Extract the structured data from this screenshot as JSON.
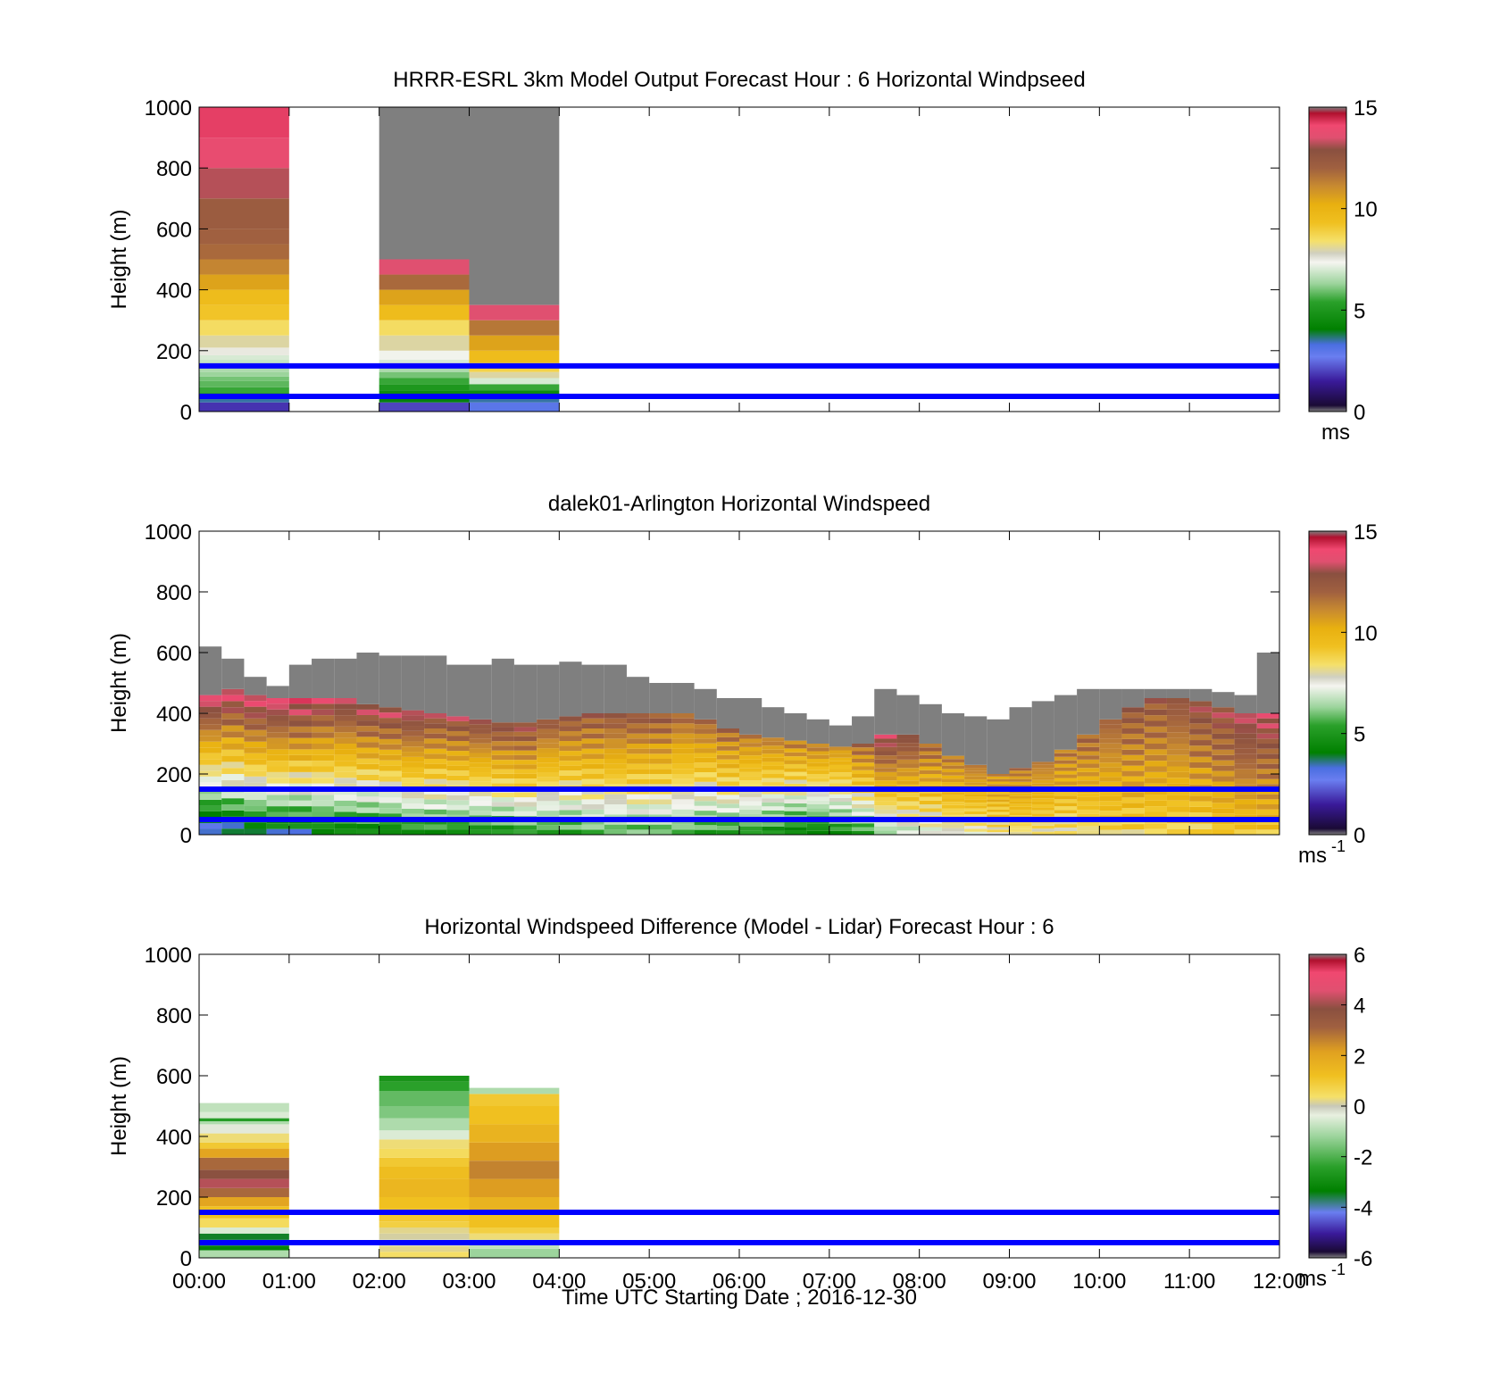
{
  "figure": {
    "xlabel": "Time UTC  Starting Date ; 2016-12-30",
    "x_ticks": [
      "00:00",
      "01:00",
      "02:00",
      "03:00",
      "04:00",
      "05:00",
      "06:00",
      "07:00",
      "08:00",
      "09:00",
      "10:00",
      "11:00",
      "12:00"
    ],
    "reference_line_color": "#0000ff"
  },
  "chart_data": [
    {
      "type": "heatmap",
      "title": "HRRR-ESRL 3km Model Output   Forecast Hour : 6 Horizontal Windpseed",
      "ylabel": "Height (m)",
      "xlim": [
        0,
        12
      ],
      "ylim": [
        0,
        1000
      ],
      "y_ticks": [
        "0",
        "200",
        "400",
        "600",
        "800",
        "1000"
      ],
      "colorbar": {
        "ticks": [
          "0",
          "5",
          "10",
          "15"
        ],
        "range": [
          0,
          15
        ],
        "unit_label": "ms",
        "unit_exponent": ""
      },
      "reference_lines_m": [
        50,
        150
      ],
      "columns": [
        {
          "x_start": 0,
          "x_end": 1,
          "top": 1000,
          "levels": [
            [
              0,
              1.8
            ],
            [
              30,
              3.5
            ],
            [
              45,
              4.5
            ],
            [
              60,
              5.5
            ],
            [
              80,
              5.8
            ],
            [
              100,
              6
            ],
            [
              115,
              6.3
            ],
            [
              130,
              6.5
            ],
            [
              150,
              6.8
            ],
            [
              170,
              7
            ],
            [
              185,
              7.5
            ],
            [
              210,
              8
            ],
            [
              250,
              8.5
            ],
            [
              300,
              9.2
            ],
            [
              350,
              9.5
            ],
            [
              400,
              10.5
            ],
            [
              450,
              11.2
            ],
            [
              500,
              11.8
            ],
            [
              550,
              12
            ],
            [
              600,
              12.2
            ],
            [
              700,
              13.2
            ],
            [
              800,
              13.8
            ],
            [
              900,
              14.2
            ]
          ]
        },
        {
          "x_start": 2,
          "x_end": 3,
          "top": 500,
          "levels": [
            [
              0,
              2
            ],
            [
              30,
              4
            ],
            [
              50,
              4.5
            ],
            [
              70,
              5
            ],
            [
              90,
              5.5
            ],
            [
              110,
              6
            ],
            [
              130,
              6.5
            ],
            [
              150,
              7
            ],
            [
              170,
              7.3
            ],
            [
              200,
              8
            ],
            [
              250,
              8.5
            ],
            [
              300,
              9.5
            ],
            [
              350,
              10.5
            ],
            [
              400,
              11.8
            ],
            [
              450,
              13.5
            ]
          ],
          "missing_above": 500
        },
        {
          "x_start": 3,
          "x_end": 4,
          "top": 350,
          "levels": [
            [
              0,
              3
            ],
            [
              30,
              3.5
            ],
            [
              50,
              4.5
            ],
            [
              70,
              5.5
            ],
            [
              90,
              7
            ],
            [
              110,
              8
            ],
            [
              130,
              8.8
            ],
            [
              160,
              9.5
            ],
            [
              200,
              10.5
            ],
            [
              250,
              11.5
            ],
            [
              300,
              13.5
            ]
          ],
          "missing_above": 350
        }
      ]
    },
    {
      "type": "heatmap",
      "title": "dalek01-Arlington  Horizontal Windspeed",
      "ylabel": "Height (m)",
      "xlim": [
        0,
        12
      ],
      "ylim": [
        0,
        1000
      ],
      "y_ticks": [
        "0",
        "200",
        "400",
        "600",
        "800",
        "1000"
      ],
      "colorbar": {
        "ticks": [
          "0",
          "5",
          "10",
          "15"
        ],
        "range": [
          0,
          15
        ],
        "unit_label": "ms",
        "unit_exponent": "-1"
      },
      "reference_lines_m": [
        50,
        150
      ],
      "time_step_h": 0.25,
      "profiles": [
        [
          0.0,
          460,
          620,
          2.5,
          14.0
        ],
        [
          0.25,
          480,
          580,
          3.0,
          14.0
        ],
        [
          0.5,
          460,
          520,
          3.5,
          14.0
        ],
        [
          0.75,
          450,
          490,
          3.5,
          14.0
        ],
        [
          1.0,
          450,
          560,
          3.5,
          14.0
        ],
        [
          1.25,
          450,
          580,
          4.0,
          13.5
        ],
        [
          1.5,
          450,
          580,
          4.0,
          13.5
        ],
        [
          1.75,
          430,
          600,
          4.0,
          13.5
        ],
        [
          2.0,
          420,
          590,
          4.0,
          13.5
        ],
        [
          2.25,
          410,
          590,
          4.5,
          13.5
        ],
        [
          2.5,
          400,
          590,
          4.5,
          13.0
        ],
        [
          2.75,
          390,
          560,
          4.5,
          13.0
        ],
        [
          3.0,
          380,
          560,
          4.5,
          13.0
        ],
        [
          3.25,
          370,
          580,
          4.5,
          13.0
        ],
        [
          3.5,
          370,
          560,
          5.0,
          13.0
        ],
        [
          3.75,
          380,
          560,
          5.0,
          12.5
        ],
        [
          4.0,
          390,
          570,
          5.0,
          12.5
        ],
        [
          4.25,
          400,
          560,
          5.5,
          12.5
        ],
        [
          4.5,
          400,
          560,
          5.5,
          12.5
        ],
        [
          4.75,
          400,
          520,
          5.5,
          12.5
        ],
        [
          5.0,
          400,
          500,
          5.5,
          12.5
        ],
        [
          5.25,
          400,
          500,
          5.5,
          12.0
        ],
        [
          5.5,
          380,
          480,
          5.0,
          12.0
        ],
        [
          5.75,
          350,
          450,
          5.0,
          12.0
        ],
        [
          6.0,
          330,
          450,
          5.0,
          11.5
        ],
        [
          6.25,
          320,
          420,
          4.5,
          11.5
        ],
        [
          6.5,
          310,
          400,
          4.0,
          11.5
        ],
        [
          6.75,
          300,
          380,
          4.0,
          11.5
        ],
        [
          7.0,
          290,
          360,
          4.5,
          11.0
        ],
        [
          7.25,
          300,
          390,
          5.0,
          12.0
        ],
        [
          7.5,
          330,
          480,
          6.0,
          13.5
        ],
        [
          7.75,
          330,
          460,
          6.5,
          13.0
        ],
        [
          8.0,
          300,
          430,
          7.0,
          12.0
        ],
        [
          8.25,
          260,
          400,
          7.5,
          11.5
        ],
        [
          8.5,
          230,
          390,
          7.5,
          11.5
        ],
        [
          8.75,
          200,
          380,
          8.0,
          11.0
        ],
        [
          9.0,
          220,
          420,
          8.0,
          11.5
        ],
        [
          9.25,
          240,
          440,
          8.0,
          11.5
        ],
        [
          9.5,
          280,
          460,
          8.0,
          11.5
        ],
        [
          9.75,
          330,
          480,
          8.0,
          12.0
        ],
        [
          10.0,
          380,
          480,
          8.5,
          12.0
        ],
        [
          10.25,
          420,
          480,
          8.5,
          12.5
        ],
        [
          10.5,
          450,
          480,
          8.5,
          12.5
        ],
        [
          10.75,
          450,
          480,
          8.5,
          12.5
        ],
        [
          11.0,
          440,
          480,
          8.5,
          13.0
        ],
        [
          11.25,
          420,
          470,
          9.0,
          13.0
        ],
        [
          11.5,
          400,
          460,
          9.0,
          13.5
        ],
        [
          11.75,
          400,
          600,
          9.0,
          13.5
        ]
      ],
      "profile_fields": [
        "hour",
        "top_valid_m",
        "top_missing_m",
        "speed_low",
        "speed_high"
      ]
    },
    {
      "type": "heatmap",
      "title": "Horizontal Windspeed Difference (Model - Lidar) Forecast Hour : 6",
      "ylabel": "Height (m)",
      "xlim": [
        0,
        12
      ],
      "ylim": [
        0,
        1000
      ],
      "y_ticks": [
        "0",
        "200",
        "400",
        "600",
        "800",
        "1000"
      ],
      "colorbar": {
        "ticks": [
          "-6",
          "-4",
          "-2",
          "0",
          "2",
          "4",
          "6"
        ],
        "range": [
          -6,
          6
        ],
        "unit_label": "ms",
        "unit_exponent": "-1"
      },
      "reference_lines_m": [
        50,
        150
      ],
      "columns": [
        {
          "x_start": 0,
          "x_end": 1,
          "top": 510,
          "levels": [
            [
              0,
              -1
            ],
            [
              25,
              -3.2
            ],
            [
              40,
              -3.8
            ],
            [
              60,
              -3.5
            ],
            [
              80,
              -0.5
            ],
            [
              100,
              0.5
            ],
            [
              130,
              1.2
            ],
            [
              170,
              2
            ],
            [
              200,
              3
            ],
            [
              230,
              4.2
            ],
            [
              260,
              3.8
            ],
            [
              290,
              3
            ],
            [
              330,
              2
            ],
            [
              360,
              1
            ],
            [
              380,
              0.3
            ],
            [
              410,
              -0.3
            ],
            [
              440,
              -1
            ],
            [
              450,
              -2.5
            ],
            [
              460,
              -0.5
            ],
            [
              480,
              -0.8
            ]
          ]
        },
        {
          "x_start": 2,
          "x_end": 3,
          "top": 600,
          "levels": [
            [
              0,
              0.4
            ],
            [
              20,
              0.2
            ],
            [
              40,
              -0.4
            ],
            [
              60,
              0.1
            ],
            [
              80,
              0.2
            ],
            [
              100,
              0.8
            ],
            [
              120,
              1.0
            ],
            [
              160,
              1.2
            ],
            [
              200,
              1.5
            ],
            [
              260,
              1.3
            ],
            [
              300,
              1.0
            ],
            [
              330,
              0.5
            ],
            [
              360,
              0.3
            ],
            [
              390,
              -0.5
            ],
            [
              420,
              -1
            ],
            [
              460,
              -1.5
            ],
            [
              500,
              -1.8
            ],
            [
              550,
              -2.4
            ],
            [
              580,
              -2.8
            ]
          ]
        },
        {
          "x_start": 3,
          "x_end": 4,
          "top": 560,
          "levels": [
            [
              0,
              -1.2
            ],
            [
              30,
              -0.8
            ],
            [
              60,
              0.3
            ],
            [
              80,
              0.8
            ],
            [
              100,
              1.2
            ],
            [
              150,
              1.6
            ],
            [
              200,
              2.2
            ],
            [
              260,
              2.6
            ],
            [
              320,
              2.2
            ],
            [
              380,
              1.6
            ],
            [
              440,
              1.2
            ],
            [
              500,
              1.0
            ],
            [
              540,
              -1
            ]
          ]
        }
      ]
    }
  ]
}
